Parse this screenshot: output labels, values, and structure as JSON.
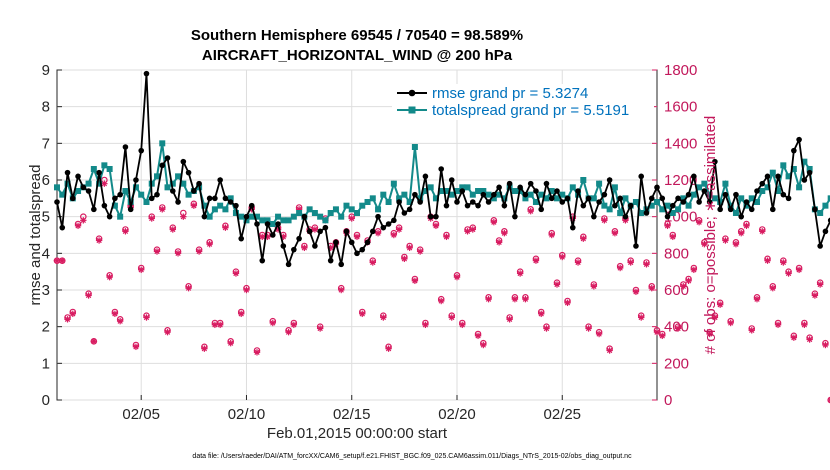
{
  "colors": {
    "rmse": "#000000",
    "spread": "#138a8a",
    "obs": "#d81b60",
    "legend_text": "#0072bd",
    "axis": "#262626"
  },
  "chart_data": {
    "type": "line",
    "title": "Southern Hemisphere 69545 / 70540 = 98.589%",
    "subtitle": "AIRCRAFT_HORIZONTAL_WIND @ 200 hPa",
    "xlabel": "Feb.01,2015 00:00:00 start",
    "ylabel": "rmse and totalspread",
    "ylabel_right": "# of obs: o=possible; ∗=assimilated",
    "footnote": "data file: /Users/raeder/DAI/ATM_forcXX/CAM6_setup/f.e21.FHIST_BGC.f09_025.CAM6assim.011/Diags_NTrS_2015-02/obs_diag_output.nc",
    "xlim": [
      1,
      29.5
    ],
    "ylim": [
      0,
      9
    ],
    "ylim_right": [
      0,
      1800
    ],
    "x_ticks": [
      5,
      10,
      15,
      20,
      25
    ],
    "x_tick_labels": [
      "02/05",
      "02/10",
      "02/15",
      "02/20",
      "02/25"
    ],
    "y_ticks": [
      0,
      1,
      2,
      3,
      4,
      5,
      6,
      7,
      8,
      9
    ],
    "y_ticks_right": [
      0,
      200,
      400,
      600,
      800,
      1000,
      1200,
      1400,
      1600,
      1800
    ],
    "legend": {
      "position": "top-right",
      "rmse_label": "rmse grand pr = 5.3274",
      "spread_label": "totalspread grand pr = 5.5191"
    },
    "x_start": 1.0,
    "x_step": 0.25,
    "series": [
      {
        "name": "rmse grand pr = 5.3274",
        "axis": "left",
        "values": [
          5.4,
          4.7,
          6.2,
          5.5,
          6.1,
          5.8,
          5.7,
          5.2,
          6.2,
          5.3,
          5.0,
          5.5,
          5.6,
          6.9,
          5.2,
          6.0,
          6.8,
          8.9,
          5.5,
          5.6,
          6.4,
          6.6,
          5.7,
          5.4,
          6.5,
          6.2,
          5.7,
          5.9,
          5.0,
          5.5,
          5.5,
          6.0,
          5.5,
          5.4,
          5.3,
          4.4,
          5.0,
          5.3,
          4.8,
          3.8,
          4.8,
          4.5,
          4.8,
          4.2,
          3.7,
          4.1,
          4.4,
          5.0,
          4.6,
          4.2,
          4.6,
          4.7,
          3.8,
          4.3,
          3.7,
          4.6,
          4.3,
          4.0,
          4.1,
          4.3,
          4.6,
          5.0,
          4.7,
          4.8,
          4.9,
          5.4,
          5.1,
          5.2,
          5.6,
          5.4,
          6.1,
          5.0,
          5.0,
          6.3,
          5.3,
          6.0,
          5.4,
          5.7,
          5.3,
          5.4,
          5.3,
          5.6,
          5.4,
          5.6,
          5.8,
          5.3,
          5.9,
          5.0,
          5.8,
          5.6,
          5.9,
          5.7,
          5.2,
          5.9,
          5.5,
          5.7,
          5.4,
          5.5,
          4.7,
          5.7,
          5.3,
          5.5,
          5.0,
          5.4,
          5.6,
          6.0,
          5.3,
          5.5,
          5.0,
          5.3,
          4.2,
          6.1,
          5.1,
          5.5,
          5.8,
          5.5,
          5.0,
          5.3,
          5.5,
          5.4,
          5.6,
          6.1,
          5.4,
          5.7,
          5.4,
          6.5,
          5.2,
          5.6,
          5.2,
          5.6,
          5.0,
          5.4,
          5.2,
          5.7,
          5.9,
          6.1,
          5.2,
          6.1,
          5.6,
          5.5,
          6.8,
          7.1,
          6.0,
          6.2,
          5.2,
          4.2,
          4.6,
          4.9
        ]
      },
      {
        "name": "totalspread grand pr = 5.5191",
        "axis": "left",
        "values": [
          5.8,
          5.6,
          5.9,
          5.5,
          5.7,
          5.8,
          5.9,
          6.3,
          5.9,
          6.4,
          6.3,
          5.3,
          5.0,
          5.7,
          5.4,
          5.8,
          5.6,
          5.4,
          5.9,
          6.1,
          7.0,
          5.8,
          5.9,
          6.1,
          5.9,
          5.6,
          5.7,
          5.8,
          5.3,
          5.0,
          5.2,
          5.3,
          5.2,
          5.5,
          5.1,
          5.0,
          4.9,
          5.0,
          5.0,
          4.9,
          4.9,
          4.8,
          5.0,
          4.9,
          4.9,
          5.0,
          5.1,
          5.0,
          5.2,
          5.1,
          5.0,
          4.9,
          5.1,
          5.2,
          5.0,
          5.3,
          5.2,
          5.1,
          5.3,
          5.4,
          5.5,
          5.2,
          5.6,
          5.4,
          5.9,
          5.5,
          5.6,
          5.4,
          6.9,
          5.5,
          5.7,
          5.8,
          5.5,
          5.7,
          5.7,
          5.6,
          5.7,
          5.8,
          5.8,
          5.6,
          5.7,
          5.7,
          5.6,
          5.5,
          5.6,
          5.5,
          5.8,
          5.7,
          5.7,
          5.5,
          5.6,
          5.4,
          5.6,
          5.5,
          5.7,
          5.5,
          5.6,
          5.5,
          5.8,
          5.6,
          6.0,
          5.5,
          5.5,
          5.9,
          5.3,
          5.2,
          5.8,
          5.1,
          5.5,
          5.3,
          5.4,
          5.1,
          5.2,
          5.3,
          5.4,
          5.2,
          5.3,
          5.1,
          5.2,
          5.5,
          5.3,
          5.6,
          5.8,
          5.9,
          5.6,
          5.5,
          5.4,
          5.9,
          5.3,
          5.1,
          5.5,
          5.3,
          5.5,
          5.4,
          5.7,
          5.8,
          6.2,
          5.7,
          6.4,
          6.1,
          6.3,
          5.8,
          6.5,
          6.3,
          5.2,
          5.1,
          5.3,
          5.5
        ]
      },
      {
        "name": "obs possible",
        "axis": "right",
        "values": [
          760,
          760,
          450,
          480,
          960,
          1000,
          580,
          320,
          880,
          1200,
          680,
          480,
          440,
          930,
          1060,
          300,
          720,
          460,
          1000,
          820,
          1050,
          380,
          940,
          810,
          1020,
          620,
          1070,
          820,
          290,
          860,
          420,
          420,
          950,
          320,
          700,
          480,
          610,
          1050,
          270,
          900,
          900,
          430,
          940,
          900,
          380,
          420,
          1050,
          840,
          930,
          940,
          400,
          990,
          840,
          860,
          610,
          920,
          1000,
          900,
          480,
          870,
          760,
          920,
          460,
          290,
          910,
          940,
          780,
          840,
          660,
          820,
          420,
          1000,
          960,
          550,
          900,
          460,
          680,
          420,
          930,
          940,
          360,
          310,
          560,
          980,
          870,
          920,
          450,
          560,
          700,
          560,
          1040,
          770,
          480,
          400,
          910,
          640,
          790,
          540,
          1000,
          760,
          890,
          400,
          630,
          370,
          990,
          280,
          920,
          730,
          990,
          760,
          600,
          460,
          750,
          620,
          380,
          360,
          960,
          900,
          400,
          630,
          660,
          720,
          980,
          860,
          370,
          460,
          530,
          880,
          430,
          860,
          920,
          960,
          390,
          560,
          930,
          770,
          620,
          420,
          760,
          700,
          350,
          720,
          420,
          340,
          580,
          640,
          310,
          0
        ]
      },
      {
        "name": "obs assimilated",
        "axis": "right",
        "values": [
          760,
          760,
          440,
          470,
          950,
          980,
          570,
          320,
          870,
          1180,
          670,
          470,
          430,
          920,
          1050,
          290,
          710,
          450,
          990,
          810,
          1040,
          370,
          930,
          800,
          1000,
          610,
          1060,
          810,
          280,
          850,
          410,
          410,
          940,
          310,
          690,
          470,
          600,
          1040,
          260,
          890,
          890,
          420,
          930,
          890,
          370,
          410,
          1040,
          830,
          920,
          930,
          390,
          980,
          830,
          850,
          600,
          910,
          990,
          890,
          470,
          860,
          750,
          910,
          450,
          280,
          900,
          930,
          770,
          830,
          650,
          810,
          410,
          990,
          950,
          540,
          890,
          450,
          670,
          410,
          920,
          930,
          350,
          300,
          550,
          970,
          860,
          910,
          440,
          550,
          690,
          550,
          1030,
          760,
          470,
          390,
          900,
          630,
          780,
          530,
          990,
          750,
          880,
          390,
          620,
          360,
          980,
          270,
          910,
          720,
          980,
          750,
          590,
          450,
          740,
          610,
          370,
          350,
          950,
          890,
          390,
          620,
          650,
          710,
          970,
          850,
          360,
          450,
          520,
          870,
          420,
          850,
          910,
          950,
          380,
          550,
          920,
          760,
          610,
          410,
          750,
          690,
          340,
          710,
          410,
          330,
          570,
          630,
          300,
          0
        ]
      }
    ]
  }
}
